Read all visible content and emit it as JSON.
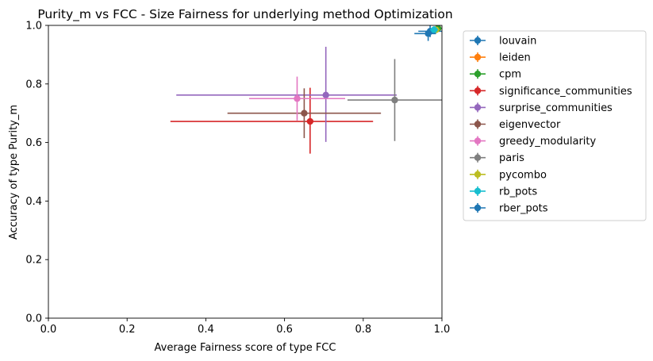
{
  "chart_data": {
    "type": "scatter",
    "title": "Purity_m vs FCC - Size Fairness for underlying method Optimization",
    "xlabel": "Average Fairness score of type FCC",
    "ylabel": "Accuracy of type Purity_m",
    "xlim": [
      0.0,
      1.0
    ],
    "ylim": [
      0.0,
      1.0
    ],
    "xticks": [
      "0.0",
      "0.2",
      "0.4",
      "0.6",
      "0.8",
      "1.0"
    ],
    "yticks": [
      "0.0",
      "0.2",
      "0.4",
      "0.6",
      "0.8",
      "1.0"
    ],
    "grid": false,
    "legend_position": "outside-right",
    "series": [
      {
        "name": "louvain",
        "color": "#1f77b4",
        "x": 0.97,
        "y": 0.98,
        "xerr": [
          0.03,
          0.03
        ],
        "yerr": [
          0.02,
          0.02
        ]
      },
      {
        "name": "leiden",
        "color": "#ff7f0e",
        "x": 0.99,
        "y": 0.99,
        "xerr": [
          0.01,
          0.01
        ],
        "yerr": [
          0.01,
          0.01
        ]
      },
      {
        "name": "cpm",
        "color": "#2ca02c",
        "x": 0.99,
        "y": 0.99,
        "xerr": [
          0.01,
          0.01
        ],
        "yerr": [
          0.01,
          0.01
        ]
      },
      {
        "name": "significance_communities",
        "color": "#d62728",
        "x": 0.665,
        "y": 0.672,
        "xerr": [
          0.355,
          0.16
        ],
        "yerr": [
          0.11,
          0.115
        ]
      },
      {
        "name": "surprise_communities",
        "color": "#9467bd",
        "x": 0.705,
        "y": 0.762,
        "xerr": [
          0.38,
          0.18
        ],
        "yerr": [
          0.16,
          0.165
        ]
      },
      {
        "name": "eigenvector",
        "color": "#8c564b",
        "x": 0.65,
        "y": 0.7,
        "xerr": [
          0.195,
          0.195
        ],
        "yerr": [
          0.085,
          0.085
        ]
      },
      {
        "name": "greedy_modularity",
        "color": "#e377c2",
        "x": 0.632,
        "y": 0.75,
        "xerr": [
          0.122,
          0.122
        ],
        "yerr": [
          0.075,
          0.075
        ]
      },
      {
        "name": "paris",
        "color": "#7f7f7f",
        "x": 0.88,
        "y": 0.745,
        "xerr": [
          0.12,
          0.12
        ],
        "yerr": [
          0.14,
          0.14
        ]
      },
      {
        "name": "pycombo",
        "color": "#bcbd22",
        "x": 0.985,
        "y": 0.985,
        "xerr": [
          0.01,
          0.01
        ],
        "yerr": [
          0.01,
          0.01
        ]
      },
      {
        "name": "rb_pots",
        "color": "#17becf",
        "x": 0.98,
        "y": 0.985,
        "xerr": [
          0.01,
          0.01
        ],
        "yerr": [
          0.012,
          0.012
        ]
      },
      {
        "name": "rber_pots",
        "color": "#1f77b4",
        "x": 0.965,
        "y": 0.972,
        "xerr": [
          0.035,
          0.02
        ],
        "yerr": [
          0.025,
          0.015
        ]
      }
    ]
  }
}
